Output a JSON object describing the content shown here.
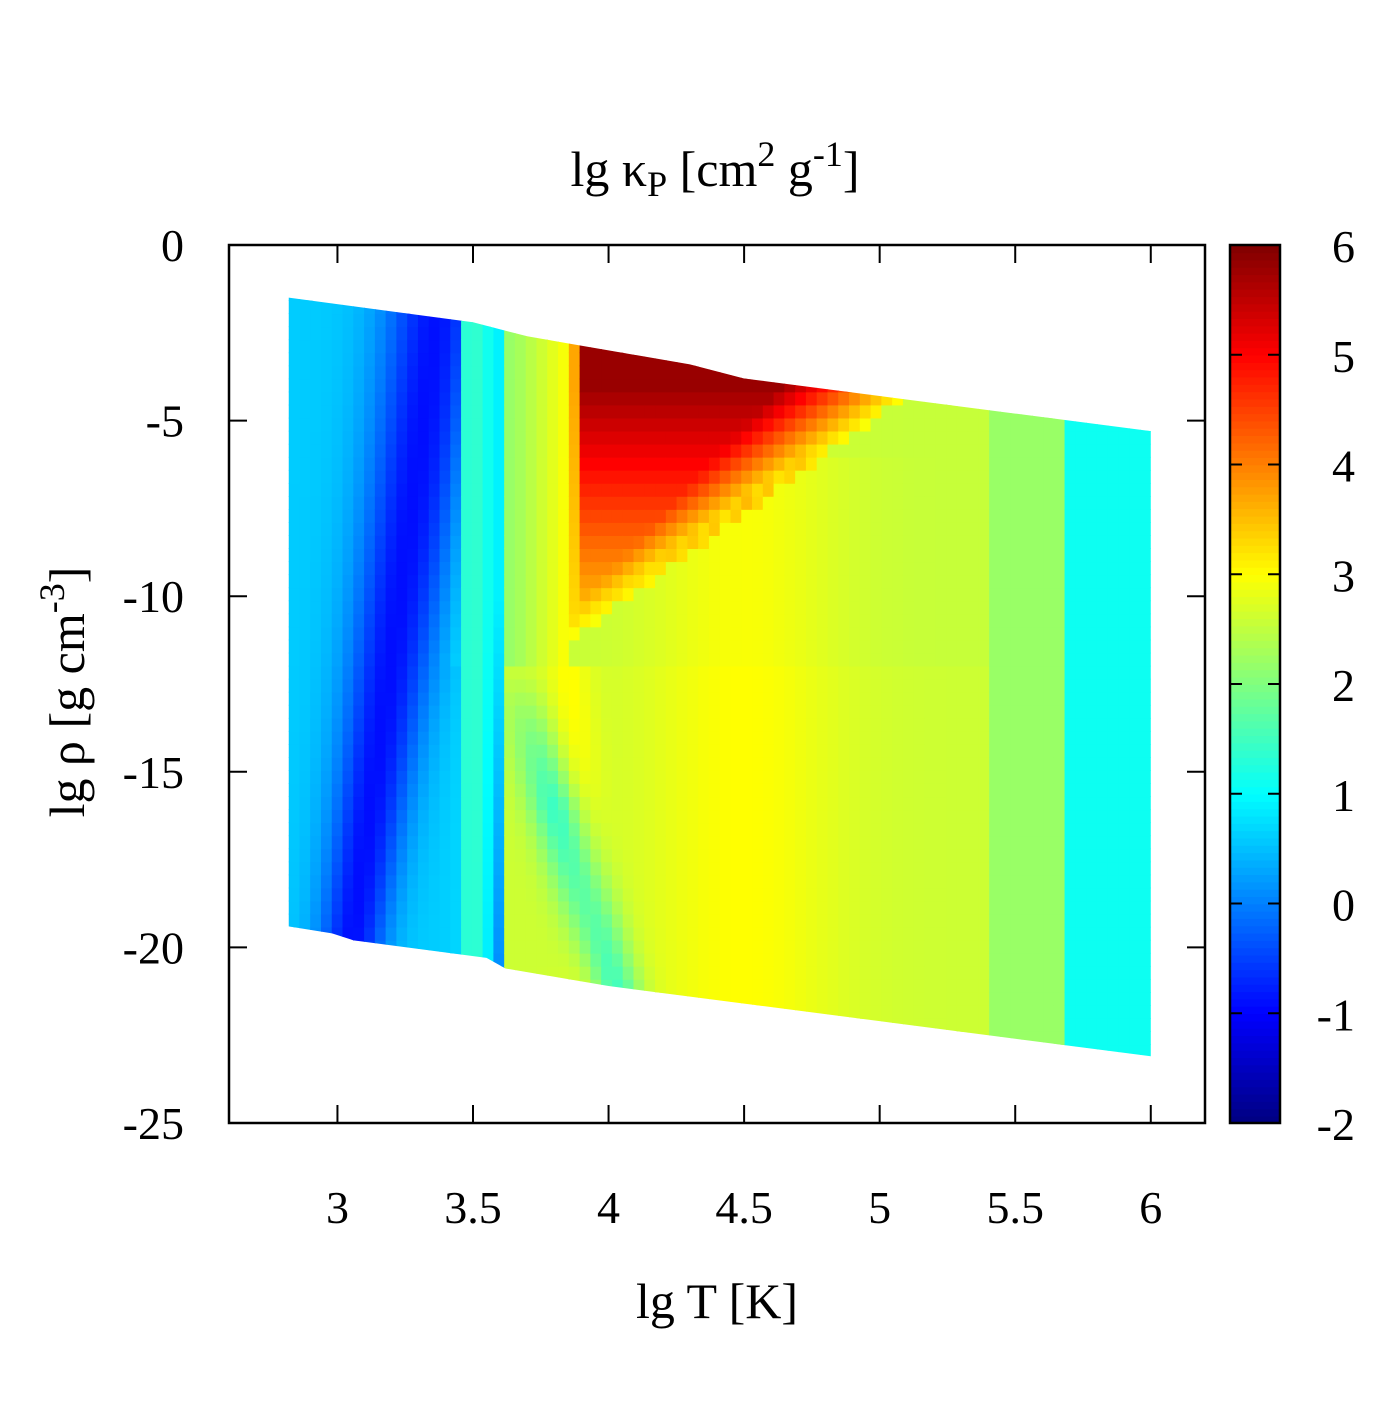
{
  "chart_data": {
    "type": "heatmap",
    "title": "lg κP [cm2 g-1]",
    "title_parts": {
      "main": "lg κ",
      "sub": "P",
      "bracket_open": " [cm",
      "sup1": "2",
      "mid": " g",
      "sup2": "-1",
      "bracket_close": "]"
    },
    "xlabel": "lg T [K]",
    "ylabel": "lg ρ [g cm-3]",
    "ylabel_parts": {
      "main": "lg ρ [g cm",
      "sup": "-3",
      "close": "]"
    },
    "xlim": [
      2.6,
      6.2
    ],
    "ylim": [
      -25,
      0
    ],
    "x_ticks": [
      "3",
      "3.5",
      "4",
      "4.5",
      "5",
      "5.5",
      "6"
    ],
    "x_tick_values": [
      3,
      3.5,
      4,
      4.5,
      5,
      5.5,
      6
    ],
    "y_ticks": [
      "0",
      "-5",
      "-10",
      "-15",
      "-20",
      "-25"
    ],
    "y_tick_values": [
      0,
      -5,
      -10,
      -15,
      -20,
      -25
    ],
    "colorbar": {
      "range": [
        -2,
        6
      ],
      "ticks": [
        "6",
        "5",
        "4",
        "3",
        "2",
        "1",
        "0",
        "-1",
        "-2"
      ],
      "tick_values": [
        6,
        5,
        4,
        3,
        2,
        1,
        0,
        -1,
        -2
      ],
      "colormap": "jet"
    },
    "domain": {
      "x_range": [
        2.82,
        6.0
      ],
      "upper_boundary": [
        [
          2.82,
          -1.5
        ],
        [
          3.5,
          -2.2
        ],
        [
          3.7,
          -2.6
        ],
        [
          3.85,
          -2.8
        ],
        [
          4.0,
          -3.0
        ],
        [
          4.3,
          -3.4
        ],
        [
          4.5,
          -3.8
        ],
        [
          5.0,
          -4.3
        ],
        [
          5.5,
          -4.8
        ],
        [
          6.0,
          -5.3
        ]
      ],
      "lower_boundary": [
        [
          2.82,
          -19.4
        ],
        [
          2.98,
          -19.6
        ],
        [
          3.06,
          -19.8
        ],
        [
          3.55,
          -20.3
        ],
        [
          3.62,
          -20.6
        ],
        [
          4.0,
          -21.1
        ],
        [
          4.5,
          -21.6
        ],
        [
          5.0,
          -22.1
        ],
        [
          5.5,
          -22.6
        ],
        [
          6.0,
          -23.1
        ]
      ]
    },
    "colors": {
      "frame": "#000000",
      "background": "#ffffff"
    }
  }
}
